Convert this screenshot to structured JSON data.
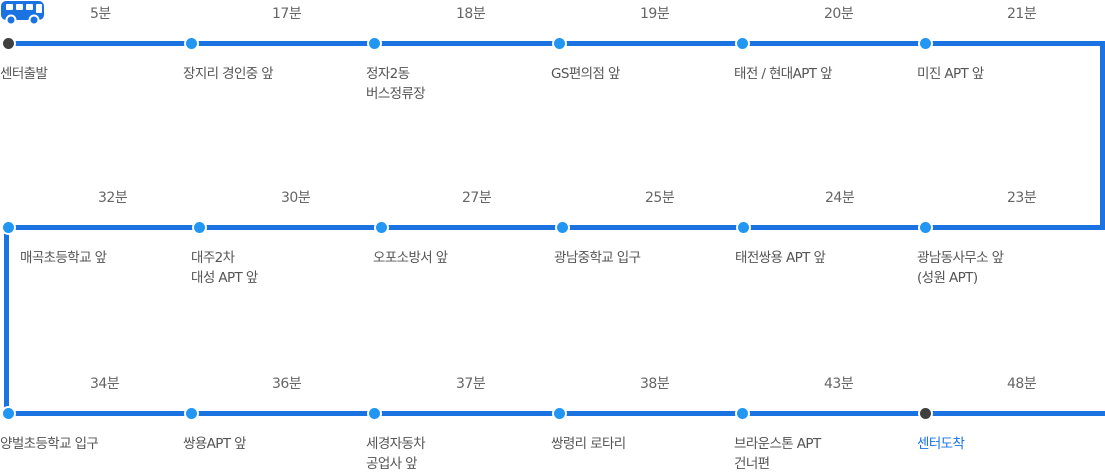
{
  "route": {
    "colors": {
      "line": "#1a73e0",
      "stop": "#2196f3",
      "terminal": "#3f3f3f",
      "arrival_text": "#1a73e0"
    },
    "bus_icon": "bus-icon",
    "rows": [
      {
        "stops": [
          {
            "name": "센터출발",
            "time": "",
            "terminal": true
          },
          {
            "name": "장지리 경인중 앞",
            "time": ""
          },
          {
            "name": "정자2동\n버스정류장",
            "time": ""
          },
          {
            "name": "GS편의점 앞",
            "time": ""
          },
          {
            "name": "태전 / 현대APT 앞",
            "time": ""
          },
          {
            "name": "미진 APT 앞",
            "time": ""
          }
        ],
        "segment_times": [
          "5분",
          "17분",
          "18분",
          "19분",
          "20분",
          "21분"
        ]
      },
      {
        "stops": [
          {
            "name": "매곡초등학교 앞"
          },
          {
            "name": "대주2차\n대성 APT 앞"
          },
          {
            "name": "오포소방서 앞"
          },
          {
            "name": "광남중학교 입구"
          },
          {
            "name": "태전쌍용  APT 앞"
          },
          {
            "name": "광남동사무소 앞\n(성원 APT)"
          }
        ],
        "segment_times": [
          "32분",
          "30분",
          "27분",
          "25분",
          "24분",
          "23분"
        ]
      },
      {
        "stops": [
          {
            "name": "양벌초등학교 입구"
          },
          {
            "name": "쌍용APT 앞"
          },
          {
            "name": "세경자동차\n공업사 앞"
          },
          {
            "name": "쌍령리 로타리"
          },
          {
            "name": "브라운스톤 APT\n건너편"
          },
          {
            "name": "센터도착",
            "terminal": true,
            "arrival": true
          }
        ],
        "segment_times": [
          "34분",
          "36분",
          "37분",
          "38분",
          "43분",
          "48분"
        ]
      }
    ]
  }
}
